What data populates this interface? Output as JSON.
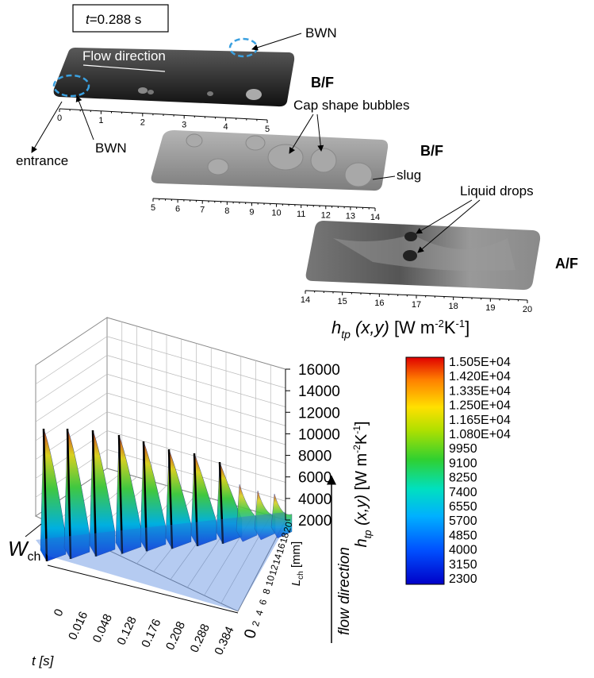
{
  "panel_top": {
    "time_label": {
      "symbol": "t",
      "value": "=0.288 s"
    },
    "frame1": {
      "label": "B/F",
      "flow": "Flow direction",
      "bwn_top": "BWN",
      "bwn_bottom": "BWN",
      "entrance": "entrance",
      "ticks": [
        0,
        1,
        2,
        3,
        4,
        5
      ]
    },
    "frame2": {
      "label": "B/F",
      "bubbles": "Cap shape bubbles",
      "slug": "slug",
      "ticks": [
        5,
        6,
        7,
        8,
        9,
        10,
        11,
        12,
        13,
        14
      ]
    },
    "frame3": {
      "label": "A/F",
      "drops": "Liquid drops",
      "ticks": [
        14,
        15,
        16,
        17,
        18,
        19,
        20
      ]
    }
  },
  "panel_bottom": {
    "colorbar": {
      "title": {
        "symbol": "h",
        "sub": "tp",
        "args": " (x,y) ",
        "unit_open": "[W m",
        "exp1": "-2",
        "unit_mid": "K",
        "exp2": "-1",
        "unit_close": "]"
      },
      "levels": [
        "1.505E+04",
        "1.420E+04",
        "1.335E+04",
        "1.250E+04",
        "1.165E+04",
        "1.080E+04",
        9950,
        9100,
        8250,
        7400,
        6550,
        5700,
        4850,
        4000,
        3150,
        2300
      ]
    },
    "z_axis": {
      "ticks": [
        16000,
        14000,
        12000,
        10000,
        8000,
        6000,
        4000,
        2000
      ],
      "title": {
        "symbol": "h",
        "sub": "tp",
        "args": " (x,y) ",
        "unit_open": "[W m",
        "exp1": "-2",
        "unit_mid": "K",
        "exp2": "-1",
        "unit_close": "]"
      }
    },
    "t_axis": {
      "title": "t [s]",
      "ticks": [
        0,
        0.016,
        0.048,
        0.128,
        0.176,
        0.208,
        0.288,
        0.384
      ]
    },
    "l_axis": {
      "title": {
        "symbol": "L",
        "sub": "ch",
        "unit": " [mm]"
      },
      "ticks": [
        0,
        2,
        4,
        6,
        8,
        10,
        12,
        14,
        16,
        18,
        20
      ]
    },
    "width_label": {
      "symbol": "W",
      "sub": "ch"
    },
    "flow_label": "flow direction"
  }
}
